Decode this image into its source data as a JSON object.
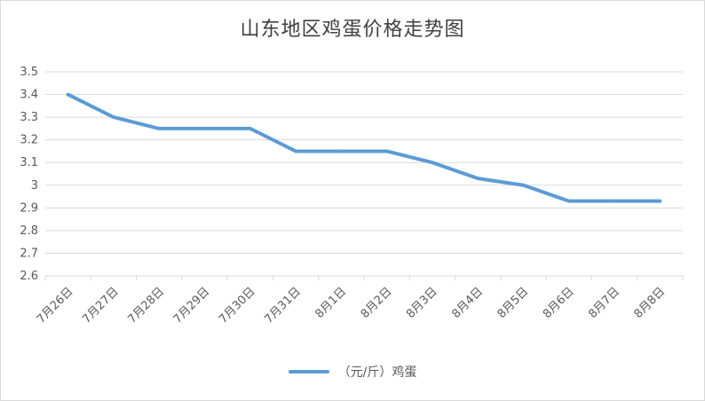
{
  "chart_data": {
    "type": "line",
    "title": "山东地区鸡蛋价格走势图",
    "categories": [
      "7月26日",
      "7月27日",
      "7月28日",
      "7月29日",
      "7月30日",
      "7月31日",
      "8月1日",
      "8月2日",
      "8月3日",
      "8月4日",
      "8月5日",
      "8月6日",
      "8月7日",
      "8月8日"
    ],
    "series": [
      {
        "name": "（元/斤）鸡蛋",
        "color": "#5b9bd5",
        "values": [
          3.4,
          3.3,
          3.25,
          3.25,
          3.25,
          3.15,
          3.15,
          3.15,
          3.1,
          3.03,
          3.0,
          2.93,
          2.93,
          2.93
        ]
      }
    ],
    "ylim": [
      2.6,
      3.5
    ],
    "yticks": [
      "3.5",
      "3.4",
      "3.3",
      "3.2",
      "3.1",
      "3",
      "2.9",
      "2.8",
      "2.7",
      "2.6"
    ],
    "grid": true,
    "legend_position": "bottom"
  }
}
